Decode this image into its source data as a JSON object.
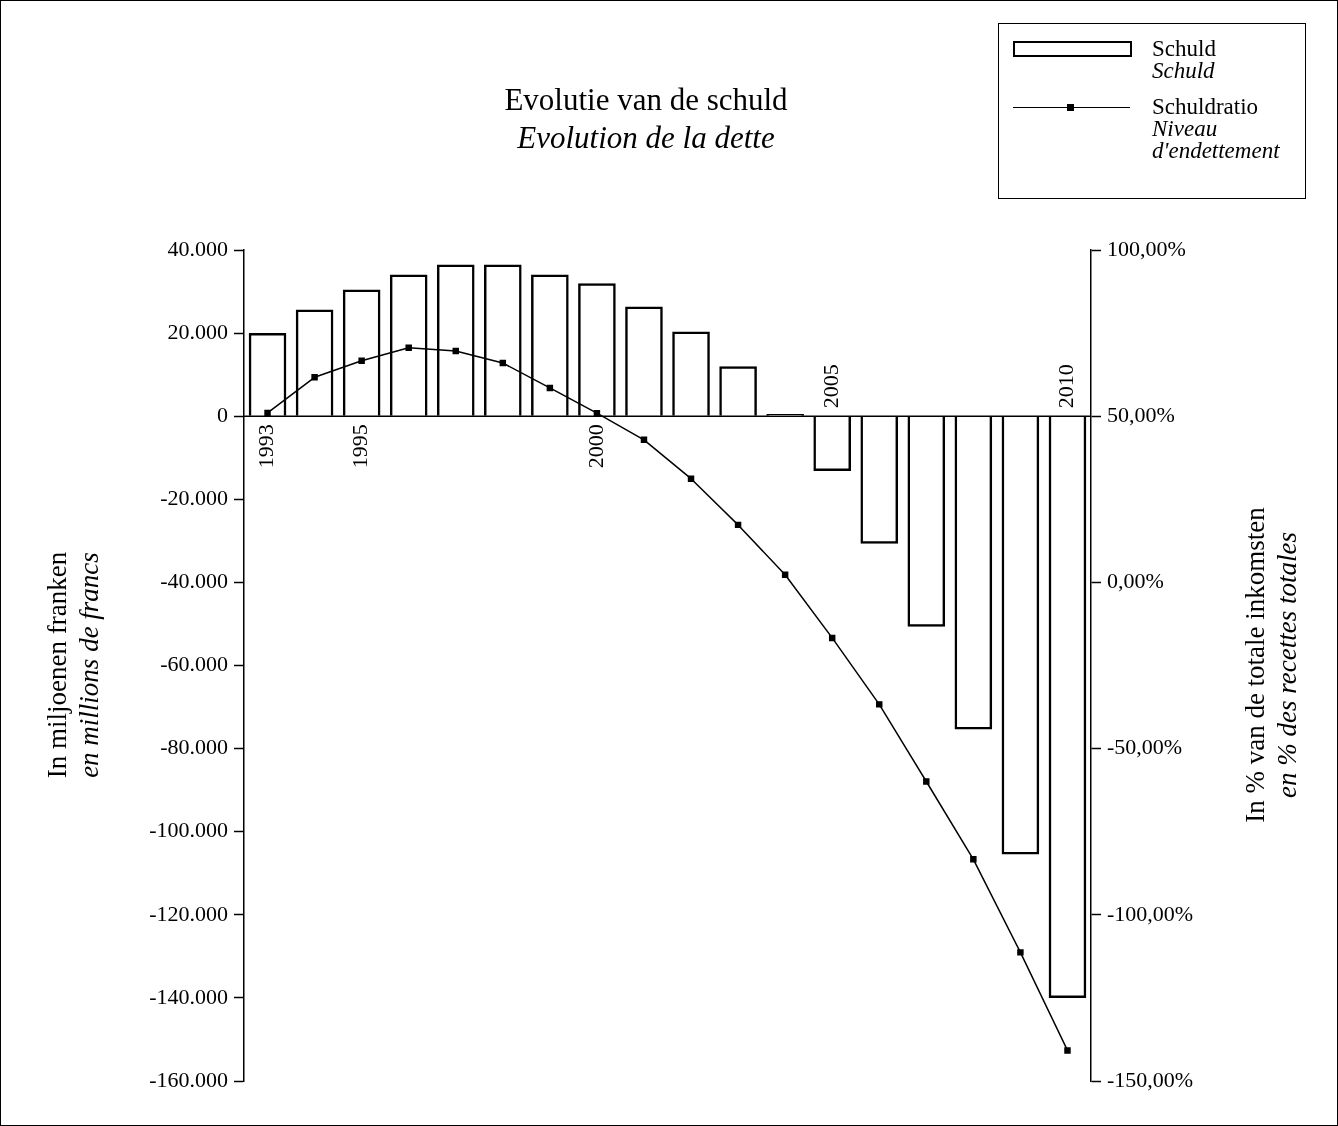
{
  "chart_data": {
    "type": "bar",
    "title": "Evolutie van de schuld",
    "subtitle": "Evolution de la dette",
    "ylabel": "In miljoenen franken\nen millions de francs",
    "y2label": "In % van de totale inkomsten\nen % des recettes totales",
    "categories": [
      "1993",
      null,
      "1995",
      null,
      null,
      null,
      null,
      "2000",
      null,
      null,
      null,
      null,
      "2005",
      null,
      null,
      null,
      null,
      "2010"
    ],
    "series": [
      {
        "name": "Schuld\nSchuld",
        "color": "#000000",
        "values": [
          20000,
          25700,
          30500,
          34100,
          36500,
          36500,
          34100,
          32000,
          26400,
          20400,
          12000,
          500,
          -13200,
          -30700,
          -50700,
          -75400,
          -105500,
          -140000
        ]
      },
      {
        "name": "Schuldratio\nNiveau d'endettement",
        "type": "line",
        "axis": "y2",
        "color": "#000000",
        "marker": "square",
        "line_style": "solid",
        "values": [
          51,
          61.7,
          66.7,
          70.6,
          69.6,
          66,
          58.5,
          50.9,
          42.9,
          31.2,
          17.3,
          2.3,
          -16.7,
          -36.7,
          -59.9,
          -83.3,
          -111.3,
          -140.8
        ]
      }
    ],
    "ylim": [
      -160000,
      40000
    ],
    "yticks": [
      {
        "value": -160000,
        "label": "-160.000"
      },
      {
        "value": -140000,
        "label": "-140.000"
      },
      {
        "value": -120000,
        "label": "-120.000"
      },
      {
        "value": -100000,
        "label": "-100.000"
      },
      {
        "value": -80000,
        "label": "-80.000"
      },
      {
        "value": -60000,
        "label": "-60.000"
      },
      {
        "value": -40000,
        "label": "-40.000"
      },
      {
        "value": -20000,
        "label": "-20.000"
      },
      0,
      {
        "value": 20000,
        "label": "20.000"
      },
      {
        "value": 40000,
        "label": "40.000"
      }
    ],
    "y2lim": [
      -150,
      100
    ],
    "y2ticks": [
      {
        "value": -150,
        "label": "-150,00%"
      },
      {
        "value": -100,
        "label": "-100,00%"
      },
      {
        "value": -50,
        "label": "-50,00%"
      },
      {
        "value": 0,
        "label": "0,00%"
      },
      {
        "value": 50,
        "label": "50,00%"
      },
      {
        "value": 100,
        "label": "100,00%"
      }
    ],
    "grid": false,
    "legend": "top right"
  }
}
